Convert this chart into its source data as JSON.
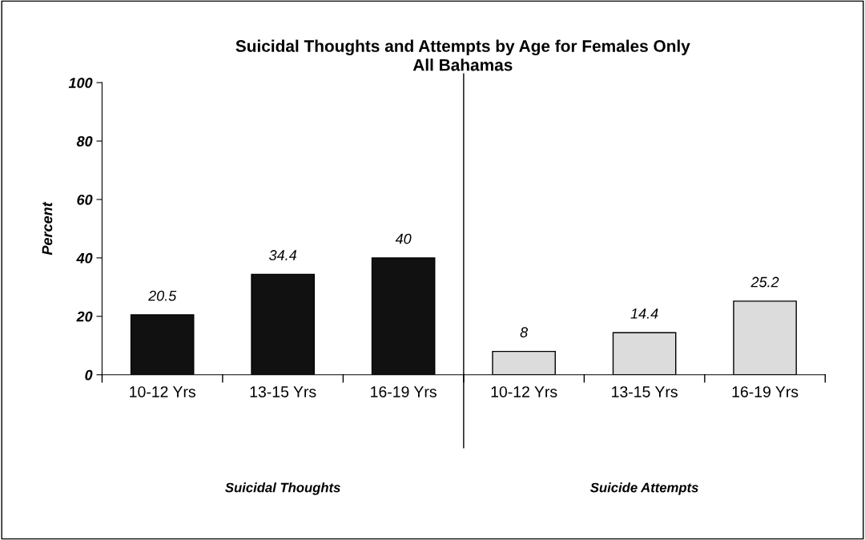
{
  "chart_data": {
    "type": "bar",
    "title": "Suicidal Thoughts and Attempts by Age for Females Only",
    "subtitle": "All Bahamas",
    "ylabel": "Percent",
    "categories": [
      "10-12 Yrs",
      "13-15 Yrs",
      "16-19 Yrs",
      "10-12 Yrs",
      "13-15 Yrs",
      "16-19 Yrs"
    ],
    "values": [
      20.5,
      34.4,
      40,
      8,
      14.4,
      25.2
    ],
    "colors": [
      "#111111",
      "#111111",
      "#111111",
      "#dcdcdc",
      "#dcdcdc",
      "#dcdcdc"
    ],
    "ylim": [
      0,
      100
    ],
    "yticks": [
      0,
      20,
      40,
      60,
      80,
      100
    ],
    "grid": false,
    "legend": false,
    "data_labels": true,
    "annotations": [
      "Suicidal Thoughts",
      "Suicide Attempts"
    ]
  }
}
